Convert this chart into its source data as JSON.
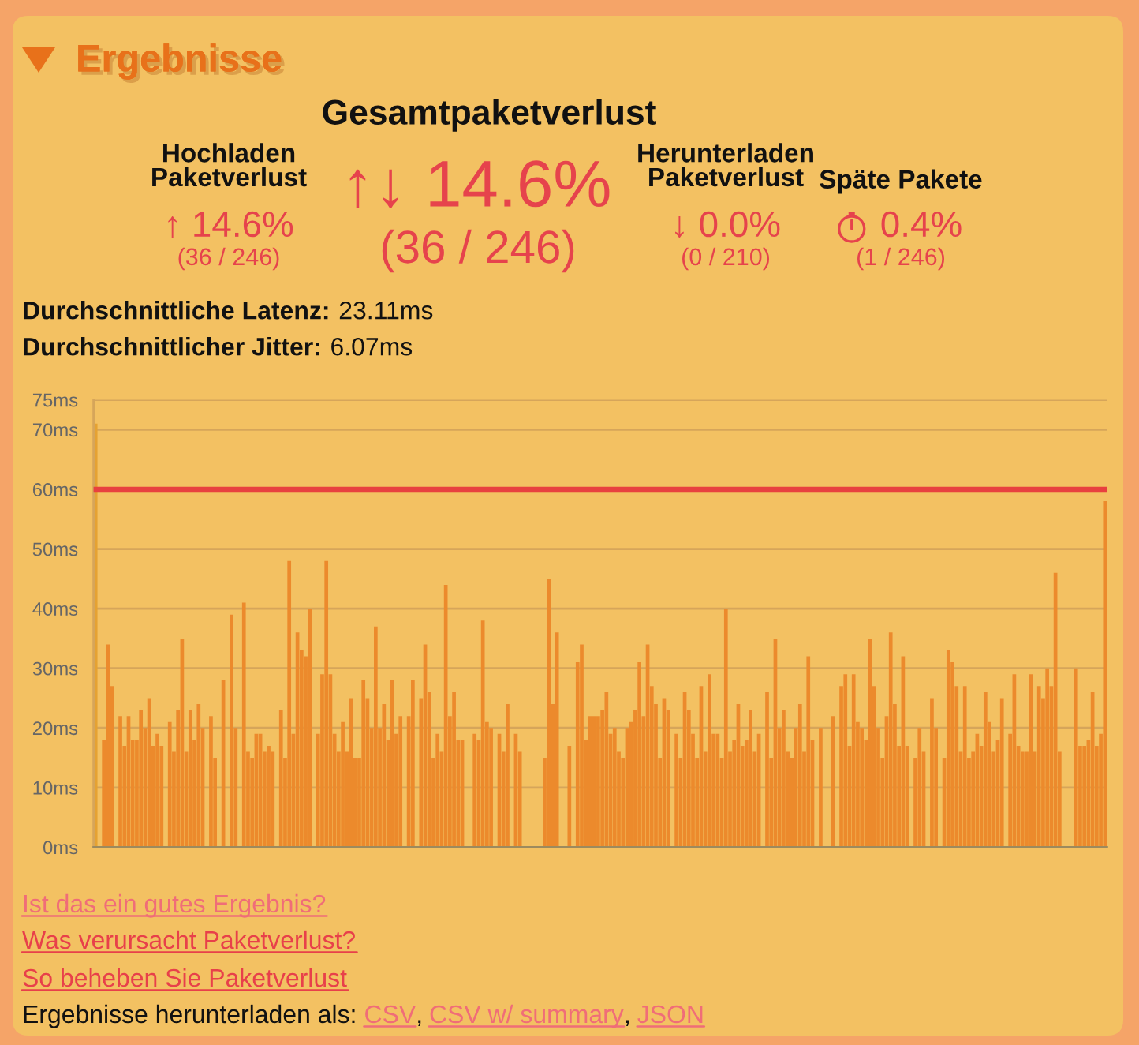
{
  "chart_data": {
    "type": "bar",
    "title": "Ergebnisse",
    "annotations": [
      "Gesamtpaketverlust",
      "Hochladen\nPaketverlust",
      "↑ 14.6%",
      "(36 / 246)",
      "↑↓ 14.6%",
      "(36 / 246)",
      "Herunterladen\nPaketverlust",
      "↓ 0.0%",
      "(0 / 210)",
      "Späte Pakete",
      "0.4%",
      "(1 / 246)",
      "Durchschnittliche Latenz:",
      "23.11ms",
      "Durchschnittlicher Jitter:",
      "6.07ms",
      "Ist das ein gutes Ergebnis?",
      "Was verursacht Paketverlust?",
      "So beheben Sie Paketverlust",
      "Ergebnisse herunterladen als:",
      "CSV",
      ",",
      "CSV w/ summary",
      ",",
      "JSON"
    ],
    "categories": [
      null,
      null,
      null,
      null,
      null,
      null,
      null,
      null,
      null,
      null,
      null,
      null,
      null,
      null,
      null,
      null,
      null,
      null,
      null,
      null,
      null,
      null,
      null,
      null,
      null,
      null,
      null,
      null,
      null,
      null,
      null,
      null,
      null,
      null,
      null,
      null,
      null,
      null,
      null,
      null,
      null,
      null,
      null,
      null,
      null,
      null,
      null,
      null,
      null,
      null,
      null,
      null,
      null,
      null,
      null,
      null,
      null,
      null,
      null,
      null,
      null,
      null,
      null,
      null,
      null,
      null,
      null,
      null,
      null,
      null,
      null,
      null,
      null,
      null,
      null,
      null,
      null,
      null,
      null,
      null,
      null,
      null,
      null,
      null,
      null,
      null,
      null,
      null,
      null,
      null,
      null,
      null,
      null,
      null,
      null,
      null,
      null,
      null,
      null,
      null,
      null,
      null,
      null,
      null,
      null,
      null,
      null,
      null,
      null,
      null,
      null,
      null,
      null,
      null,
      null,
      null,
      null,
      null,
      null,
      null,
      null,
      null,
      null,
      null,
      null,
      null,
      null,
      null,
      null,
      null,
      null,
      null,
      null,
      null,
      null,
      null,
      null,
      null,
      null,
      null,
      null,
      null,
      null,
      null,
      null,
      null,
      null,
      null,
      null,
      null,
      null,
      null,
      null,
      null,
      null,
      null,
      null,
      null,
      null,
      null,
      null,
      null,
      null,
      null,
      null,
      null,
      null,
      null,
      null,
      null,
      null,
      null,
      null,
      null,
      null,
      null,
      null,
      null,
      null,
      null,
      null,
      null,
      null,
      null,
      null,
      null,
      null,
      null,
      null,
      null,
      null,
      null,
      null,
      null,
      null,
      null,
      null,
      null,
      null,
      null,
      null,
      null,
      null,
      null,
      null,
      null,
      null,
      null,
      null,
      null,
      null,
      null,
      null,
      null,
      null,
      null,
      null,
      null,
      null,
      null,
      null,
      null,
      null,
      null,
      null,
      null,
      null,
      null,
      null,
      null,
      null,
      null,
      null,
      null,
      null,
      null,
      null,
      null,
      null,
      null,
      null,
      null,
      null,
      null,
      null,
      null
    ],
    "values": [
      71,
      null,
      18,
      34,
      27,
      null,
      22,
      17,
      22,
      18,
      18,
      23,
      20,
      25,
      17,
      19,
      17,
      null,
      21,
      16,
      23,
      35,
      16,
      23,
      18,
      24,
      20,
      null,
      22,
      15,
      null,
      28,
      null,
      39,
      20,
      null,
      41,
      16,
      15,
      19,
      19,
      16,
      17,
      16,
      null,
      23,
      15,
      48,
      19,
      36,
      33,
      32,
      40,
      null,
      19,
      29,
      48,
      29,
      19,
      16,
      21,
      16,
      25,
      15,
      15,
      28,
      25,
      20,
      37,
      20,
      24,
      18,
      28,
      19,
      22,
      null,
      22,
      28,
      null,
      25,
      34,
      26,
      15,
      19,
      16,
      44,
      22,
      26,
      18,
      18,
      null,
      null,
      19,
      18,
      38,
      21,
      20,
      null,
      19,
      16,
      24,
      null,
      19,
      16,
      null,
      null,
      null,
      null,
      null,
      15,
      45,
      24,
      36,
      null,
      null,
      17,
      null,
      31,
      34,
      18,
      22,
      22,
      22,
      23,
      26,
      19,
      20,
      16,
      15,
      20,
      21,
      23,
      31,
      22,
      34,
      27,
      24,
      15,
      25,
      23,
      null,
      19,
      15,
      26,
      23,
      19,
      15,
      27,
      16,
      29,
      19,
      19,
      15,
      40,
      16,
      18,
      24,
      17,
      18,
      23,
      16,
      19,
      null,
      26,
      15,
      35,
      20,
      23,
      16,
      15,
      20,
      24,
      16,
      32,
      18,
      null,
      20,
      null,
      null,
      22,
      null,
      27,
      29,
      17,
      29,
      21,
      20,
      18,
      35,
      27,
      20,
      15,
      22,
      36,
      24,
      17,
      32,
      17,
      null,
      15,
      20,
      16,
      null,
      25,
      20,
      null,
      15,
      33,
      31,
      27,
      16,
      27,
      15,
      16,
      19,
      17,
      26,
      21,
      16,
      18,
      25,
      null,
      19,
      29,
      17,
      16,
      16,
      29,
      16,
      27,
      25,
      30,
      27,
      46,
      16,
      null,
      null,
      null,
      30,
      17,
      17,
      18,
      26,
      17,
      19,
      58
    ],
    "colors": [
      "#e5a232",
      "#ec8a2c",
      "#ec8a2c",
      "#ec8a2c",
      "#ec8a2c",
      "#ec8a2c",
      "#ec8a2c",
      "#ec8a2c",
      "#ec8a2c",
      "#ec8a2c",
      "#ec8a2c",
      "#ec8a2c",
      "#ec8a2c",
      "#ec8a2c",
      "#ec8a2c",
      "#ec8a2c",
      "#ec8a2c",
      "#ec8a2c",
      "#ec8a2c",
      "#ec8a2c",
      "#ec8a2c",
      "#ec8a2c",
      "#ec8a2c",
      "#ec8a2c",
      "#ec8a2c",
      "#ec8a2c",
      "#ec8a2c",
      "#ec8a2c",
      "#ec8a2c",
      "#ec8a2c",
      "#ec8a2c",
      "#ec8a2c",
      "#ec8a2c",
      "#ec8a2c",
      "#ec8a2c",
      "#ec8a2c",
      "#ec8a2c",
      "#ec8a2c",
      "#ec8a2c",
      "#ec8a2c",
      "#ec8a2c",
      "#ec8a2c",
      "#ec8a2c",
      "#ec8a2c",
      "#ec8a2c",
      "#ec8a2c",
      "#ec8a2c",
      "#ec8a2c",
      "#ec8a2c",
      "#ec8a2c",
      "#ec8a2c",
      "#ec8a2c",
      "#ec8a2c",
      "#ec8a2c",
      "#ec8a2c",
      "#ec8a2c",
      "#ec8a2c",
      "#ec8a2c",
      "#ec8a2c",
      "#ec8a2c",
      "#ec8a2c",
      "#ec8a2c",
      "#ec8a2c",
      "#ec8a2c",
      "#ec8a2c",
      "#ec8a2c",
      "#ec8a2c",
      "#ec8a2c",
      "#ec8a2c",
      "#ec8a2c",
      "#ec8a2c",
      "#ec8a2c",
      "#ec8a2c",
      "#ec8a2c",
      "#ec8a2c",
      "#ec8a2c",
      "#ec8a2c",
      "#ec8a2c",
      "#ec8a2c",
      "#ec8a2c",
      "#ec8a2c",
      "#ec8a2c",
      "#ec8a2c",
      "#ec8a2c",
      "#ec8a2c",
      "#ec8a2c",
      "#ec8a2c",
      "#ec8a2c",
      "#ec8a2c",
      "#ec8a2c",
      "#ec8a2c",
      "#ec8a2c",
      "#ec8a2c",
      "#ec8a2c",
      "#ec8a2c",
      "#ec8a2c",
      "#ec8a2c",
      "#ec8a2c",
      "#ec8a2c",
      "#ec8a2c",
      "#ec8a2c",
      "#ec8a2c",
      "#ec8a2c",
      "#ec8a2c",
      "#ec8a2c",
      "#ec8a2c",
      "#ec8a2c",
      "#ec8a2c",
      "#ec8a2c",
      "#ec8a2c",
      "#ec8a2c",
      "#ec8a2c",
      "#ec8a2c",
      "#ec8a2c",
      "#ec8a2c",
      "#ec8a2c",
      "#ec8a2c",
      "#ec8a2c",
      "#ec8a2c",
      "#ec8a2c",
      "#ec8a2c",
      "#ec8a2c",
      "#ec8a2c",
      "#ec8a2c",
      "#ec8a2c",
      "#ec8a2c",
      "#ec8a2c",
      "#ec8a2c",
      "#ec8a2c",
      "#ec8a2c",
      "#ec8a2c",
      "#ec8a2c",
      "#ec8a2c",
      "#ec8a2c",
      "#ec8a2c",
      "#ec8a2c",
      "#ec8a2c",
      "#ec8a2c",
      "#ec8a2c",
      "#ec8a2c",
      "#ec8a2c",
      "#ec8a2c",
      "#ec8a2c",
      "#ec8a2c",
      "#ec8a2c",
      "#ec8a2c",
      "#ec8a2c",
      "#ec8a2c",
      "#ec8a2c",
      "#ec8a2c",
      "#ec8a2c",
      "#ec8a2c",
      "#ec8a2c",
      "#ec8a2c",
      "#ec8a2c",
      "#ec8a2c",
      "#ec8a2c",
      "#ec8a2c",
      "#ec8a2c",
      "#ec8a2c",
      "#ec8a2c",
      "#ec8a2c",
      "#ec8a2c",
      "#ec8a2c",
      "#ec8a2c",
      "#ec8a2c",
      "#ec8a2c",
      "#ec8a2c",
      "#ec8a2c",
      "#ec8a2c",
      "#ec8a2c",
      "#ec8a2c",
      "#ec8a2c",
      "#ec8a2c",
      "#ec8a2c",
      "#ec8a2c",
      "#ec8a2c",
      "#ec8a2c",
      "#ec8a2c",
      "#ec8a2c",
      "#ec8a2c",
      "#ec8a2c",
      "#ec8a2c",
      "#ec8a2c",
      "#ec8a2c",
      "#ec8a2c",
      "#ec8a2c",
      "#ec8a2c",
      "#ec8a2c",
      "#ec8a2c",
      "#ec8a2c",
      "#ec8a2c",
      "#ec8a2c",
      "#ec8a2c",
      "#ec8a2c",
      "#ec8a2c",
      "#ec8a2c",
      "#ec8a2c",
      "#ec8a2c",
      "#ec8a2c",
      "#ec8a2c",
      "#ec8a2c",
      "#ec8a2c",
      "#ec8a2c",
      "#ec8a2c",
      "#ec8a2c",
      "#ec8a2c",
      "#ec8a2c",
      "#ec8a2c",
      "#ec8a2c",
      "#ec8a2c",
      "#ec8a2c",
      "#ec8a2c",
      "#ec8a2c",
      "#ec8a2c",
      "#ec8a2c",
      "#ec8a2c",
      "#ec8a2c",
      "#ec8a2c",
      "#ec8a2c",
      "#ec8a2c",
      "#ec8a2c",
      "#ec8a2c",
      "#ec8a2c",
      "#ec8a2c",
      "#ec8a2c",
      "#ec8a2c",
      "#ec8a2c",
      "#ec8a2c",
      "#ec8a2c",
      "#ec8a2c",
      "#ec8a2c",
      "#ec8a2c",
      "#ec8a2c",
      "#ec8a2c",
      "#ec8a2c",
      "#ec8a2c",
      "#ec8a2c",
      "#ec8a2c",
      "#ec8a2c",
      "#ec8a2c",
      "#ec8a2c",
      "#ec8a2c",
      "#ec8a2c",
      "#ec8a2c",
      "#ec8a2c"
    ],
    "ylim": [
      0,
      75
    ],
    "yticks": [
      {
        "value": 0,
        "label": "0ms"
      },
      {
        "value": 10,
        "label": "10ms"
      },
      {
        "value": 20,
        "label": "20ms"
      },
      {
        "value": 30,
        "label": "30ms"
      },
      {
        "value": 40,
        "label": "40ms"
      },
      {
        "value": 50,
        "label": "50ms"
      },
      {
        "value": 60,
        "label": "60ms"
      },
      {
        "value": 70,
        "label": "70ms"
      },
      {
        "value": 75,
        "label": "75ms"
      }
    ],
    "ref_lines": [
      {
        "axis": "y",
        "value": 60,
        "color": "#e8403f"
      }
    ],
    "grid": "y",
    "tick_labels": "y"
  }
}
